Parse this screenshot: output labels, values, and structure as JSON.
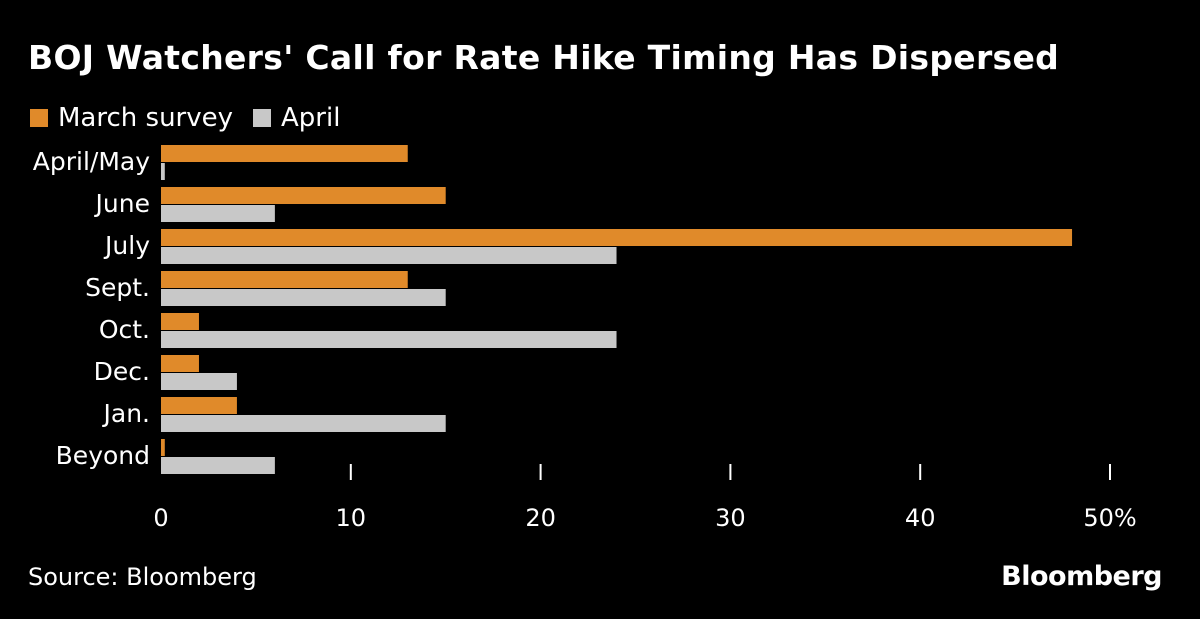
{
  "title": "BOJ Watchers' Call for Rate Hike Timing Has Dispersed",
  "source": "Source: Bloomberg",
  "logo": "Bloomberg",
  "colors": {
    "march": "#e08a2a",
    "april": "#c8c8c8",
    "background": "#000000",
    "text": "#ffffff"
  },
  "chart_data": {
    "type": "bar",
    "orientation": "horizontal",
    "categories": [
      "April/May",
      "June",
      "July",
      "Sept.",
      "Oct.",
      "Dec.",
      "Jan.",
      "Beyond"
    ],
    "series": [
      {
        "name": "March survey",
        "values": [
          13,
          15,
          48,
          13,
          2,
          2,
          4,
          0.2
        ]
      },
      {
        "name": "April",
        "values": [
          0.2,
          6,
          24,
          15,
          24,
          4,
          15,
          6
        ]
      }
    ],
    "xlim": [
      0,
      50
    ],
    "xticks": [
      0,
      10,
      20,
      30,
      40,
      50
    ],
    "xtick_labels": [
      "0",
      "10",
      "20",
      "30",
      "40",
      "50%"
    ],
    "legend_position": "top-left",
    "grid": false
  }
}
